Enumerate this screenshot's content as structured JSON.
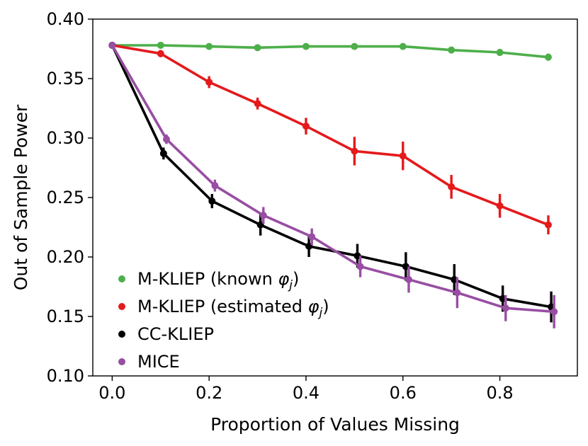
{
  "chart_data": {
    "type": "line",
    "xlabel": "Proportion of Values Missing",
    "ylabel": "Out of Sample Power",
    "xlim": [
      -0.04,
      0.96
    ],
    "ylim": [
      0.1,
      0.4
    ],
    "xticks": [
      0.0,
      0.2,
      0.4,
      0.6,
      0.8
    ],
    "xtick_labels": [
      "0.0",
      "0.2",
      "0.4",
      "0.6",
      "0.8"
    ],
    "yticks": [
      0.1,
      0.15,
      0.2,
      0.25,
      0.3,
      0.35,
      0.4
    ],
    "ytick_labels": [
      "0.10",
      "0.15",
      "0.20",
      "0.25",
      "0.30",
      "0.35",
      "0.40"
    ],
    "grid": false,
    "legend_position": "bottom-left",
    "series": [
      {
        "name": "M-KLIEP (known φj)",
        "legend": {
          "prefix": "M-KLIEP (known ",
          "symbol": "φ",
          "sub": "j",
          "suffix": ")"
        },
        "color": "#4daf4a",
        "x": [
          0.0,
          0.1,
          0.2,
          0.3,
          0.4,
          0.5,
          0.6,
          0.7,
          0.8,
          0.9
        ],
        "y": [
          0.378,
          0.378,
          0.377,
          0.376,
          0.377,
          0.377,
          0.377,
          0.374,
          0.372,
          0.368
        ],
        "err": [
          0.001,
          0.001,
          0.001,
          0.001,
          0.001,
          0.001,
          0.001,
          0.002,
          0.003,
          0.003
        ]
      },
      {
        "name": "M-KLIEP (estimated φj)",
        "legend": {
          "prefix": "M-KLIEP (estimated ",
          "symbol": "φ",
          "sub": "j",
          "suffix": ")"
        },
        "color": "#e41a1c",
        "x": [
          0.0,
          0.1,
          0.2,
          0.3,
          0.4,
          0.5,
          0.6,
          0.7,
          0.8,
          0.9
        ],
        "y": [
          0.378,
          0.371,
          0.347,
          0.329,
          0.31,
          0.289,
          0.285,
          0.259,
          0.243,
          0.227
        ],
        "err": [
          0.001,
          0.003,
          0.005,
          0.005,
          0.007,
          0.012,
          0.012,
          0.01,
          0.01,
          0.008
        ]
      },
      {
        "name": "CC-KLIEP",
        "legend": {
          "prefix": "CC-KLIEP",
          "symbol": "",
          "sub": "",
          "suffix": ""
        },
        "color": "#000000",
        "x": [
          0.0,
          0.1,
          0.2,
          0.3,
          0.4,
          0.5,
          0.6,
          0.7,
          0.8,
          0.9
        ],
        "y": [
          0.378,
          0.287,
          0.247,
          0.227,
          0.209,
          0.201,
          0.192,
          0.181,
          0.165,
          0.158
        ],
        "err": [
          0.001,
          0.005,
          0.006,
          0.009,
          0.009,
          0.01,
          0.012,
          0.013,
          0.011,
          0.013
        ]
      },
      {
        "name": "MICE",
        "legend": {
          "prefix": "MICE",
          "symbol": "",
          "sub": "",
          "suffix": ""
        },
        "color": "#984ea3",
        "x": [
          0.0,
          0.1,
          0.2,
          0.3,
          0.4,
          0.5,
          0.6,
          0.7,
          0.8,
          0.9
        ],
        "y": [
          0.378,
          0.299,
          0.26,
          0.235,
          0.217,
          0.192,
          0.181,
          0.17,
          0.157,
          0.154
        ],
        "err": [
          0.001,
          0.004,
          0.005,
          0.007,
          0.007,
          0.009,
          0.011,
          0.013,
          0.011,
          0.014
        ]
      }
    ]
  }
}
